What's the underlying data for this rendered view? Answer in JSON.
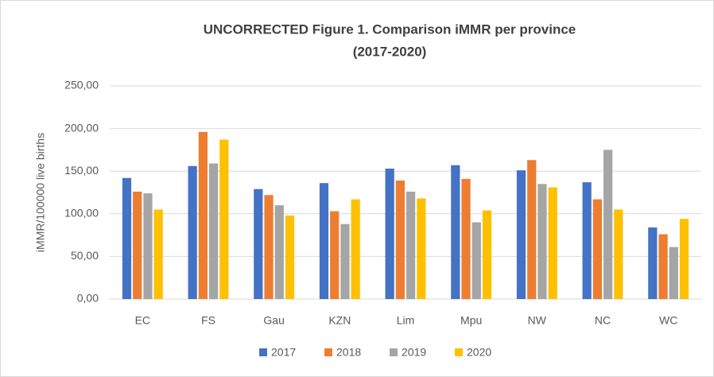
{
  "chart_data": {
    "type": "bar",
    "title": [
      "UNCORRECTED Figure 1. Comparison iMMR per province",
      "(2017-2020)"
    ],
    "y_label": "iMMR/100000 live births",
    "categories": [
      "EC",
      "FS",
      "Gau",
      "KZN",
      "Lim",
      "Mpu",
      "NW",
      "NC",
      "WC"
    ],
    "series": [
      {
        "name": "2017",
        "color": "#4472c4",
        "values": [
          142,
          156,
          129,
          136,
          153,
          157,
          151,
          137,
          84
        ]
      },
      {
        "name": "2018",
        "color": "#ed7d31",
        "values": [
          126,
          196,
          122,
          103,
          139,
          141,
          163,
          117,
          76
        ]
      },
      {
        "name": "2019",
        "color": "#a5a5a5",
        "values": [
          124,
          159,
          110,
          88,
          126,
          90,
          135,
          175,
          61
        ]
      },
      {
        "name": "2020",
        "color": "#ffc000",
        "values": [
          105,
          187,
          98,
          117,
          118,
          104,
          131,
          105,
          94
        ]
      }
    ],
    "ylim": [
      0,
      250
    ],
    "yticks": [
      {
        "value": 0,
        "label": "0,00"
      },
      {
        "value": 50,
        "label": "50,00"
      },
      {
        "value": 100,
        "label": "100,00"
      },
      {
        "value": 150,
        "label": "150,00"
      },
      {
        "value": 200,
        "label": "200,00"
      },
      {
        "value": 250,
        "label": "250,00"
      }
    ],
    "grid": true,
    "legend": "bottom"
  }
}
